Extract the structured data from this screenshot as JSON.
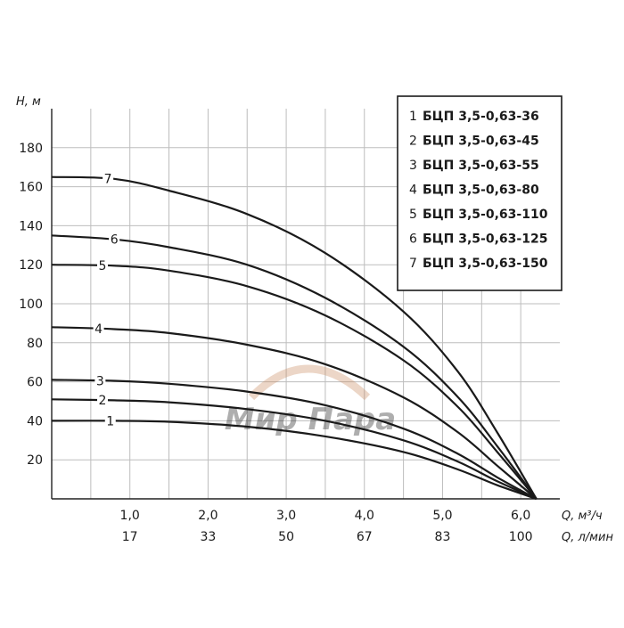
{
  "chart_data": {
    "type": "line",
    "y_axis": {
      "title": "H, м",
      "ticks": [
        20,
        40,
        60,
        80,
        100,
        120,
        140,
        160,
        180
      ],
      "range": [
        0,
        200
      ]
    },
    "x_axis": {
      "title_primary": "Q, м³/ч",
      "title_secondary": "Q, л/мин",
      "range": [
        0,
        6.5
      ],
      "ticks_primary": [
        {
          "x": 1.0,
          "label": "1,0"
        },
        {
          "x": 2.0,
          "label": "2,0"
        },
        {
          "x": 3.0,
          "label": "3,0"
        },
        {
          "x": 4.0,
          "label": "4,0"
        },
        {
          "x": 5.0,
          "label": "5,0"
        },
        {
          "x": 6.0,
          "label": "6,0"
        }
      ],
      "ticks_secondary": [
        {
          "x": 1.0,
          "label": "17"
        },
        {
          "x": 2.0,
          "label": "33"
        },
        {
          "x": 3.0,
          "label": "50"
        },
        {
          "x": 4.0,
          "label": "67"
        },
        {
          "x": 5.0,
          "label": "83"
        },
        {
          "x": 6.0,
          "label": "100"
        }
      ]
    },
    "grid": true,
    "legend_position": "top-right",
    "legend": [
      {
        "num": "1",
        "label": "БЦП 3,5-0,63-36"
      },
      {
        "num": "2",
        "label": "БЦП 3,5-0,63-45"
      },
      {
        "num": "3",
        "label": "БЦП 3,5-0,63-55"
      },
      {
        "num": "4",
        "label": "БЦП 3,5-0,63-80"
      },
      {
        "num": "5",
        "label": "БЦП 3,5-0,63-110"
      },
      {
        "num": "6",
        "label": "БЦП 3,5-0,63-125"
      },
      {
        "num": "7",
        "label": "БЦП 3,5-0,63-150"
      }
    ],
    "series": [
      {
        "label": "1",
        "points": [
          [
            0,
            40
          ],
          [
            0.8,
            40
          ],
          [
            1.5,
            39.5
          ],
          [
            2.5,
            37
          ],
          [
            3.5,
            32
          ],
          [
            4.5,
            24
          ],
          [
            5.2,
            15
          ],
          [
            5.7,
            7
          ],
          [
            6.2,
            0
          ]
        ]
      },
      {
        "label": "2",
        "points": [
          [
            0,
            51
          ],
          [
            0.8,
            50.5
          ],
          [
            1.5,
            49.5
          ],
          [
            2.5,
            46
          ],
          [
            3.5,
            40
          ],
          [
            4.5,
            30
          ],
          [
            5.2,
            19
          ],
          [
            5.7,
            9
          ],
          [
            6.2,
            0
          ]
        ]
      },
      {
        "label": "3",
        "points": [
          [
            0,
            61
          ],
          [
            0.8,
            60.5
          ],
          [
            1.5,
            59
          ],
          [
            2.5,
            55
          ],
          [
            3.5,
            48
          ],
          [
            4.5,
            36
          ],
          [
            5.2,
            23
          ],
          [
            5.7,
            11
          ],
          [
            6.2,
            0
          ]
        ]
      },
      {
        "label": "4",
        "points": [
          [
            0,
            88
          ],
          [
            0.8,
            87
          ],
          [
            1.5,
            85
          ],
          [
            2.5,
            79
          ],
          [
            3.5,
            69
          ],
          [
            4.5,
            52
          ],
          [
            5.2,
            34
          ],
          [
            5.7,
            17
          ],
          [
            6.2,
            0
          ]
        ]
      },
      {
        "label": "5",
        "points": [
          [
            0,
            120
          ],
          [
            0.8,
            119.5
          ],
          [
            1.5,
            117
          ],
          [
            2.5,
            109
          ],
          [
            3.5,
            94
          ],
          [
            4.5,
            71
          ],
          [
            5.2,
            47
          ],
          [
            5.7,
            24
          ],
          [
            6.2,
            0
          ]
        ]
      },
      {
        "label": "6",
        "points": [
          [
            0,
            135
          ],
          [
            0.8,
            133
          ],
          [
            1.5,
            129
          ],
          [
            2.5,
            120
          ],
          [
            3.5,
            103
          ],
          [
            4.5,
            78
          ],
          [
            5.2,
            52
          ],
          [
            5.7,
            27
          ],
          [
            6.2,
            0
          ]
        ]
      },
      {
        "label": "7",
        "points": [
          [
            0,
            165
          ],
          [
            0.8,
            164
          ],
          [
            1.5,
            158
          ],
          [
            2.5,
            146
          ],
          [
            3.5,
            126
          ],
          [
            4.5,
            96
          ],
          [
            5.2,
            65
          ],
          [
            5.7,
            34
          ],
          [
            6.2,
            0
          ]
        ]
      }
    ],
    "curve_label_x": [
      0.75,
      0.65,
      0.62,
      0.6,
      0.65,
      0.8,
      0.72
    ],
    "watermark": "Мир Пара",
    "colors": {
      "curve": "#1a1a1a",
      "grid": "#bdbdbd",
      "frame": "#222222",
      "watermark": "#c98a5e"
    }
  }
}
